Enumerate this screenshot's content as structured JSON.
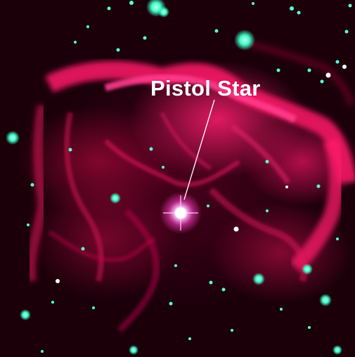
{
  "image": {
    "label_text": "Pistol Star",
    "colors": {
      "nebula": "#ff1e6e",
      "background": "#1b000a",
      "stars": "#3dffc8",
      "pistol_star": "#ffffff"
    }
  }
}
